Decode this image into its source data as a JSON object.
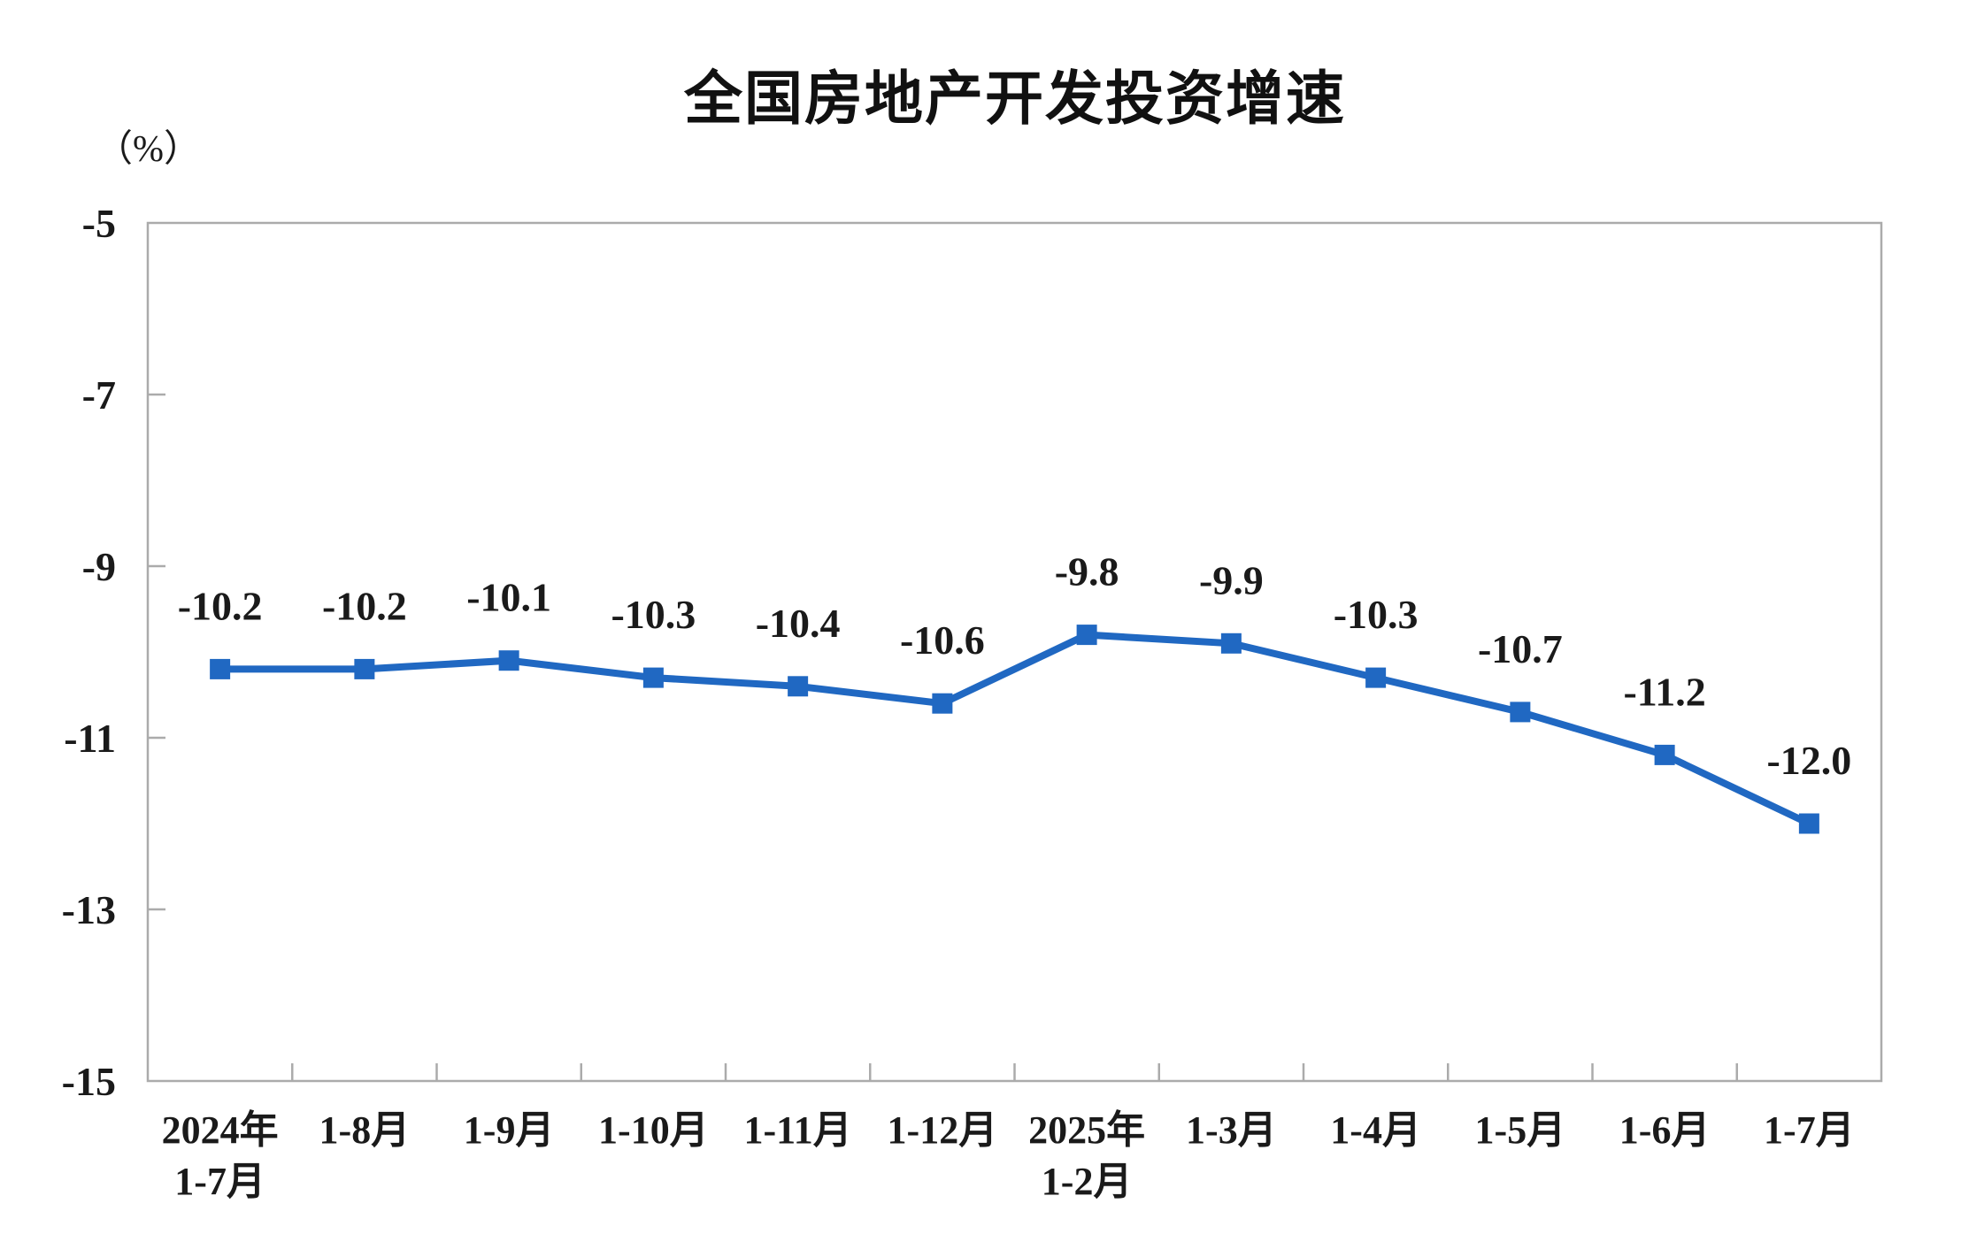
{
  "chart_data": {
    "type": "line",
    "title": "全国房地产开发投资增速",
    "unit_label": "（%）",
    "categories": [
      [
        "2024年",
        "1-7月"
      ],
      [
        "1-8月"
      ],
      [
        "1-9月"
      ],
      [
        "1-10月"
      ],
      [
        "1-11月"
      ],
      [
        "1-12月"
      ],
      [
        "2025年",
        "1-2月"
      ],
      [
        "1-3月"
      ],
      [
        "1-4月"
      ],
      [
        "1-5月"
      ],
      [
        "1-6月"
      ],
      [
        "1-7月"
      ]
    ],
    "series": [
      {
        "name": "全国房地产开发投资增速",
        "values": [
          -10.2,
          -10.2,
          -10.1,
          -10.3,
          -10.4,
          -10.6,
          -9.8,
          -9.9,
          -10.3,
          -10.7,
          -11.2,
          -12.0
        ],
        "data_labels": [
          "-10.2",
          "-10.2",
          "-10.1",
          "-10.3",
          "-10.4",
          "-10.6",
          "-9.8",
          "-9.9",
          "-10.3",
          "-10.7",
          "-11.2",
          "-12.0"
        ]
      }
    ],
    "ylim": [
      -15,
      -5
    ],
    "y_ticks": [
      -5,
      -7,
      -9,
      -11,
      -13,
      -15
    ],
    "y_tick_labels": [
      "-5",
      "-7",
      "-9",
      "-11",
      "-13",
      "-15"
    ],
    "xlabel": "",
    "ylabel": "",
    "grid": false,
    "legend": "none",
    "colors": {
      "line": "#2068C2",
      "marker": "#2068C2",
      "axis": "#ABABAB",
      "text": "#1a1a1a"
    }
  }
}
